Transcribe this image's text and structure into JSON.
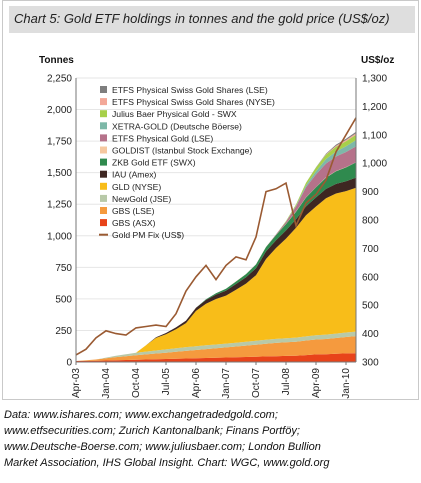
{
  "chart_data": {
    "type": "area",
    "title": "Chart 5: Gold ETF holdings in tonnes and the gold price (US$/oz)",
    "ylabel_left": "Tonnes",
    "ylabel_right": "US$/oz",
    "ylim_left": [
      0,
      2250
    ],
    "ylim_right": [
      300,
      1300
    ],
    "yticks_left": [
      0,
      250,
      500,
      750,
      1000,
      1250,
      1500,
      1750,
      2000,
      2250
    ],
    "yticks_left_labels": [
      "0",
      "250",
      "500",
      "750",
      "1,000",
      "1,250",
      "1,500",
      "1,750",
      "2,000",
      "2,250"
    ],
    "yticks_right": [
      300,
      400,
      500,
      600,
      700,
      800,
      900,
      1000,
      1100,
      1200,
      1300
    ],
    "yticks_right_labels": [
      "300",
      "400",
      "500",
      "600",
      "700",
      "800",
      "900",
      "1,000",
      "1,100",
      "1,200",
      "1,300"
    ],
    "x_tick_labels": [
      "Apr-03",
      "Jan-04",
      "Oct-04",
      "Jul-05",
      "Apr-06",
      "Jan-07",
      "Oct-07",
      "Jul-08",
      "Apr-09",
      "Jan-10"
    ],
    "x": [
      "Apr-03",
      "Jul-03",
      "Oct-03",
      "Jan-04",
      "Apr-04",
      "Jul-04",
      "Oct-04",
      "Jan-05",
      "Apr-05",
      "Jul-05",
      "Oct-05",
      "Jan-06",
      "Apr-06",
      "Jul-06",
      "Oct-06",
      "Jan-07",
      "Apr-07",
      "Jul-07",
      "Oct-07",
      "Jan-08",
      "Apr-08",
      "Jul-08",
      "Oct-08",
      "Jan-09",
      "Apr-09",
      "Jul-09",
      "Oct-09",
      "Jan-10",
      "Apr-10"
    ],
    "legend_position": "top-left",
    "series": [
      {
        "name": "GBS (ASX)",
        "color": "#e8431a",
        "values": [
          8,
          9,
          10,
          12,
          14,
          16,
          18,
          20,
          22,
          24,
          26,
          28,
          30,
          32,
          34,
          36,
          38,
          40,
          42,
          44,
          46,
          48,
          50,
          55,
          60,
          62,
          65,
          68,
          70
        ]
      },
      {
        "name": "GBS (LSE)",
        "color": "#f59a3e",
        "values": [
          0,
          5,
          10,
          18,
          25,
          30,
          35,
          40,
          45,
          50,
          55,
          60,
          65,
          70,
          75,
          80,
          85,
          90,
          95,
          100,
          105,
          108,
          110,
          115,
          118,
          120,
          125,
          130,
          135
        ]
      },
      {
        "name": "NewGold (JSE)",
        "color": "#b8c9a8",
        "values": [
          0,
          0,
          0,
          5,
          10,
          15,
          20,
          22,
          24,
          26,
          28,
          30,
          30,
          30,
          30,
          30,
          30,
          31,
          31,
          32,
          32,
          32,
          33,
          33,
          34,
          35,
          35,
          36,
          36
        ]
      },
      {
        "name": "GLD (NYSE)",
        "color": "#f8bd19",
        "values": [
          0,
          0,
          0,
          0,
          0,
          0,
          0,
          50,
          100,
          120,
          150,
          190,
          280,
          330,
          360,
          380,
          420,
          460,
          520,
          640,
          720,
          790,
          870,
          960,
          1020,
          1080,
          1110,
          1120,
          1140
        ]
      },
      {
        "name": "IAU (Amex)",
        "color": "#3e2722",
        "values": [
          0,
          0,
          0,
          0,
          0,
          0,
          0,
          0,
          5,
          10,
          15,
          20,
          25,
          30,
          35,
          40,
          45,
          50,
          55,
          60,
          62,
          65,
          68,
          70,
          72,
          74,
          76,
          78,
          80
        ]
      },
      {
        "name": "ZKB Gold ETF (SWX)",
        "color": "#2f8a4e",
        "values": [
          0,
          0,
          0,
          0,
          0,
          0,
          0,
          0,
          0,
          0,
          0,
          0,
          0,
          5,
          10,
          15,
          20,
          25,
          30,
          35,
          40,
          50,
          60,
          70,
          80,
          90,
          100,
          110,
          120
        ]
      },
      {
        "name": "GOLDIST (Istanbul Stock Exchange)",
        "color": "#f6c8a0",
        "values": [
          0,
          0,
          0,
          0,
          0,
          0,
          0,
          0,
          0,
          0,
          0,
          0,
          0,
          0,
          0,
          0,
          1,
          1,
          1,
          1,
          1,
          2,
          2,
          2,
          2,
          2,
          2,
          2,
          2
        ]
      },
      {
        "name": "ETFS Physical Gold (LSE)",
        "color": "#b5728a",
        "values": [
          0,
          0,
          0,
          0,
          0,
          0,
          0,
          0,
          0,
          0,
          0,
          0,
          0,
          0,
          0,
          0,
          0,
          0,
          0,
          0,
          5,
          15,
          40,
          80,
          100,
          110,
          115,
          120,
          125
        ]
      },
      {
        "name": "XETRA-GOLD (Deutsche Böerse)",
        "color": "#7db8a8",
        "values": [
          0,
          0,
          0,
          0,
          0,
          0,
          0,
          0,
          0,
          0,
          0,
          0,
          0,
          0,
          0,
          0,
          0,
          0,
          0,
          0,
          0,
          2,
          5,
          15,
          25,
          35,
          40,
          45,
          50
        ]
      },
      {
        "name": "Julius Baer Physical Gold - SWX",
        "color": "#a7d04a",
        "values": [
          0,
          0,
          0,
          0,
          0,
          0,
          0,
          0,
          0,
          0,
          0,
          0,
          0,
          0,
          0,
          0,
          0,
          0,
          0,
          0,
          0,
          5,
          10,
          20,
          30,
          35,
          38,
          40,
          42
        ]
      },
      {
        "name": "ETFS Physical Swiss Gold Shares (NYSE)",
        "color": "#f3a898",
        "values": [
          0,
          0,
          0,
          0,
          0,
          0,
          0,
          0,
          0,
          0,
          0,
          0,
          0,
          0,
          0,
          0,
          0,
          0,
          0,
          0,
          0,
          0,
          0,
          0,
          0,
          3,
          8,
          10,
          12
        ]
      },
      {
        "name": "ETFS Physical Swiss Gold Shares (LSE)",
        "color": "#7e7e7e",
        "values": [
          0,
          0,
          0,
          0,
          0,
          0,
          0,
          0,
          0,
          0,
          0,
          0,
          0,
          0,
          0,
          0,
          0,
          0,
          0,
          0,
          0,
          0,
          0,
          0,
          2,
          5,
          8,
          10,
          12
        ]
      }
    ],
    "price_series": {
      "name": "Gold PM Fix (US$)",
      "color": "#9a5a32",
      "values": [
        325,
        345,
        385,
        410,
        400,
        395,
        420,
        425,
        430,
        425,
        470,
        550,
        600,
        640,
        590,
        640,
        670,
        660,
        740,
        900,
        910,
        930,
        780,
        860,
        890,
        940,
        1040,
        1100,
        1160
      ]
    }
  },
  "footer": {
    "line1": "Data: www.ishares.com; www.exchangetradedgold.com;",
    "line2": "www.etfsecurities.com; Zurich Kantonalbank; Finans Portföy;",
    "line3": "www.Deutsche-Boerse.com; www.juliusbaer.com; London Bullion",
    "line4": "Market Association, IHS Global Insight. Chart: WGC, www.gold.org"
  }
}
